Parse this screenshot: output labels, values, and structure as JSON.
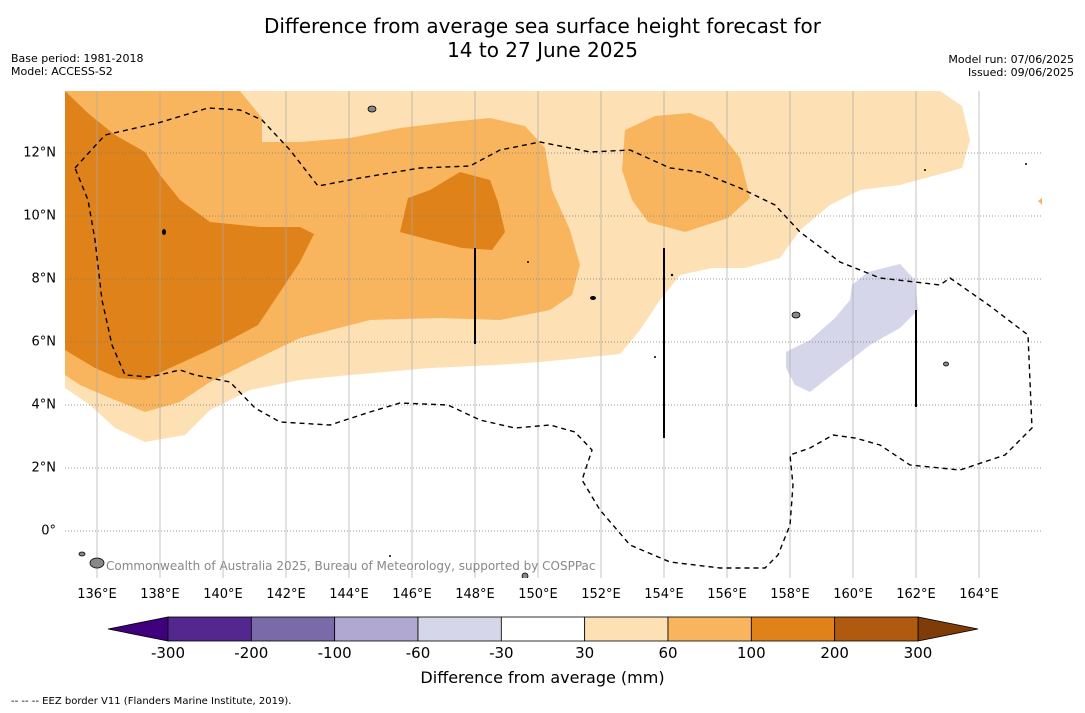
{
  "title_line1": "Difference from average sea surface height forecast for",
  "title_line2": "14 to 27 June 2025",
  "meta_left": {
    "base_period": "Base period: 1981-2018",
    "model": "Model: ACCESS-S2"
  },
  "meta_right": {
    "model_run": "Model run: 07/06/2025",
    "issued": "Issued: 09/06/2025"
  },
  "map": {
    "lon_labels": [
      "136°E",
      "138°E",
      "140°E",
      "142°E",
      "144°E",
      "146°E",
      "148°E",
      "150°E",
      "152°E",
      "154°E",
      "156°E",
      "158°E",
      "160°E",
      "162°E",
      "164°E"
    ],
    "lon_values": [
      136,
      138,
      140,
      142,
      144,
      146,
      148,
      150,
      152,
      154,
      156,
      158,
      160,
      162,
      164
    ],
    "lat_labels": [
      "12°N",
      "10°N",
      "8°N",
      "6°N",
      "4°N",
      "2°N",
      "0°"
    ],
    "lat_values": [
      12,
      10,
      8,
      6,
      4,
      2,
      0
    ],
    "lon_range": [
      135,
      166
    ],
    "lat_range": [
      -1.5,
      14
    ],
    "copyright": "Commonwealth of Australia 2025, Bureau of Meteorology, supported by COSPPac"
  },
  "colorbar": {
    "ticks": [
      "-300",
      "-200",
      "-100",
      "-60",
      "-30",
      "30",
      "60",
      "100",
      "200",
      "300"
    ],
    "colors": [
      "#54278f",
      "#7a6aa9",
      "#b0a8d1",
      "#d6d6ea",
      "#ffffff",
      "#fde0b4",
      "#f9b55d",
      "#e0821a",
      "#b05a10"
    ],
    "under_color": "#3f007d",
    "over_color": "#7f3b08",
    "label": "Difference from average (mm)"
  },
  "footnote": "--  --  -- EEZ border V11 (Flanders Marine Institute, 2019)."
}
